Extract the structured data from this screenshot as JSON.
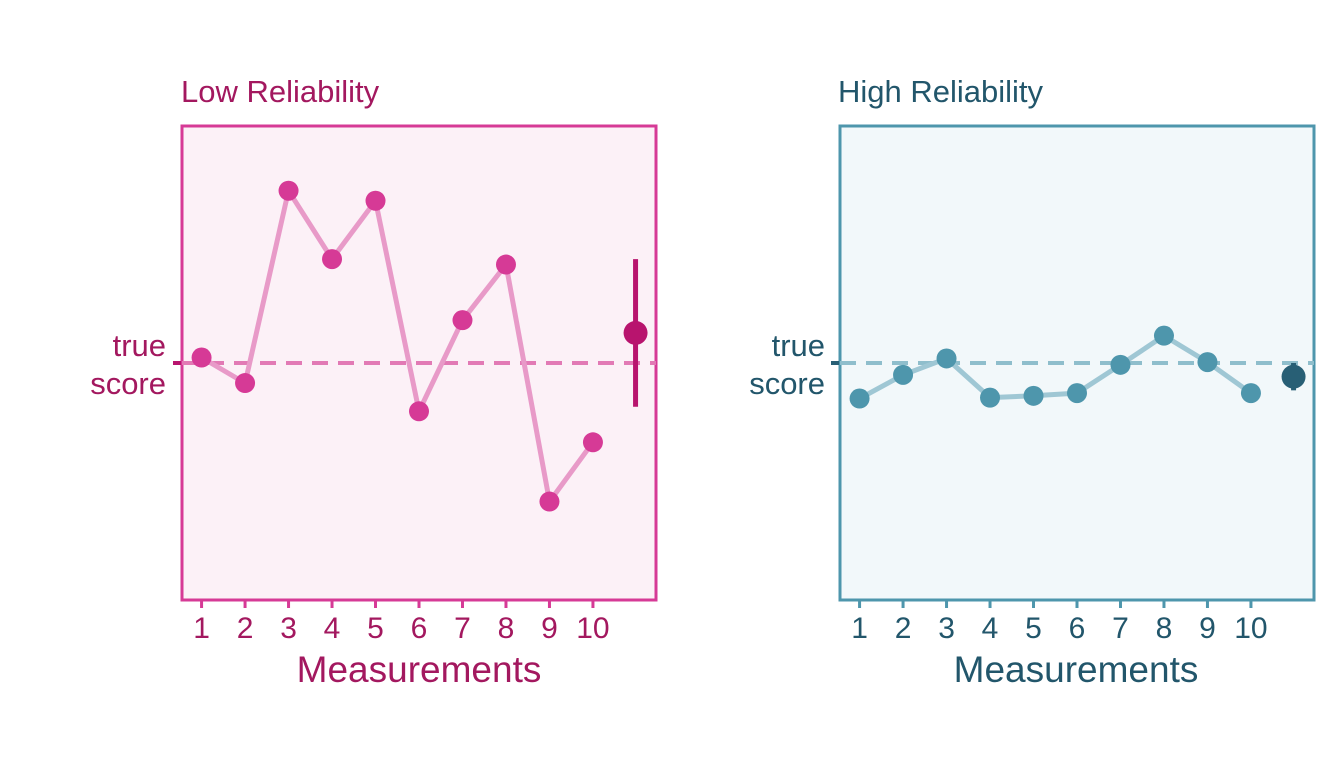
{
  "chart_data": [
    {
      "type": "line",
      "title": "Low Reliability",
      "xlabel": "Measurements",
      "ylabel_lines": [
        "true",
        "score"
      ],
      "x": [
        1,
        2,
        3,
        4,
        5,
        6,
        7,
        8,
        9,
        10
      ],
      "x_tick_labels": [
        "1",
        "2",
        "3",
        "4",
        "5",
        "6",
        "7",
        "8",
        "9",
        "10"
      ],
      "xlim": [
        0.55,
        11.45
      ],
      "ylim": [
        -2.6,
        2.6
      ],
      "true_score": 0,
      "values": [
        0.06,
        -0.22,
        1.89,
        1.14,
        1.78,
        -0.53,
        0.47,
        1.08,
        -1.52,
        -0.87
      ],
      "mean_marker": {
        "x": 10.98,
        "value": 0.33,
        "range": [
          -0.48,
          1.14
        ]
      },
      "colors": {
        "title": "#a3185f",
        "frame": "#d63a96",
        "background": "#fcf1f7",
        "point": "#d63a96",
        "line": "#e89ac8",
        "dashed": "#e27ab5",
        "mean": "#b8146e"
      }
    },
    {
      "type": "line",
      "title": "High Reliability",
      "xlabel": "Measurements",
      "ylabel_lines": [
        "true",
        "score"
      ],
      "x": [
        1,
        2,
        3,
        4,
        5,
        6,
        7,
        8,
        9,
        10
      ],
      "x_tick_labels": [
        "1",
        "2",
        "3",
        "4",
        "5",
        "6",
        "7",
        "8",
        "9",
        "10"
      ],
      "xlim": [
        0.55,
        11.45
      ],
      "ylim": [
        -2.6,
        2.6
      ],
      "true_score": 0,
      "values": [
        -0.39,
        -0.13,
        0.05,
        -0.38,
        -0.36,
        -0.33,
        -0.02,
        0.3,
        0.01,
        -0.33
      ],
      "mean_marker": {
        "x": 10.98,
        "value": -0.15,
        "range": [
          -0.3,
          0.0
        ]
      },
      "colors": {
        "title": "#22566b",
        "frame": "#4e96ac",
        "background": "#f2f8fa",
        "point": "#4e96ac",
        "line": "#9fc7d4",
        "dashed": "#8fbecc",
        "mean": "#285f75"
      }
    }
  ]
}
